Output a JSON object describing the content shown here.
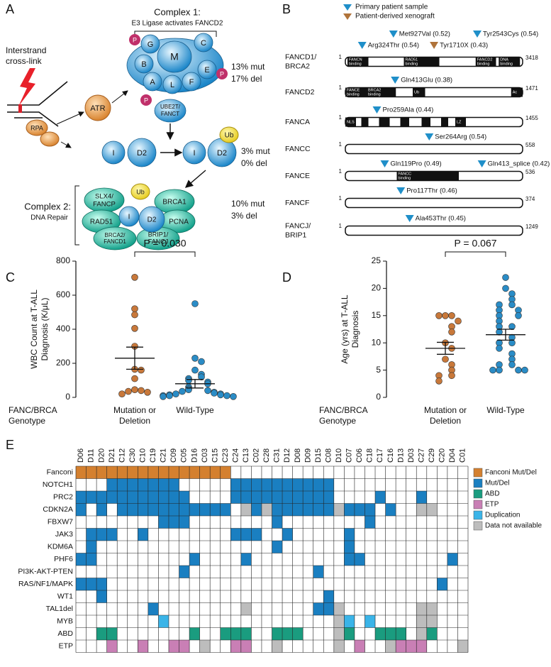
{
  "panel_labels": [
    "A",
    "B",
    "C",
    "D",
    "E"
  ],
  "panel_a": {
    "crosslink_label": [
      "Interstrand",
      "cross-link"
    ],
    "atr": "ATR",
    "rpa": "RPA",
    "complex1_title": "Complex 1:",
    "complex1_subtitle": "E3 Ligase activates FANCD2",
    "core_subunits": [
      "G",
      "M",
      "C",
      "B",
      "E",
      "A",
      "L",
      "F"
    ],
    "phospho": "P",
    "ube2t": [
      "UBE2T/",
      "FANCT"
    ],
    "complex1_stats": [
      "13% mut",
      "17% del"
    ],
    "id2": [
      "I",
      "D2"
    ],
    "ub": "Ub",
    "id2_stats": [
      "3% mut",
      "0% del"
    ],
    "complex2_title": "Complex 2:",
    "complex2_subtitle": "DNA Repair",
    "complex2_members": {
      "slx4": [
        "SLX4/",
        "FANCP"
      ],
      "brca1": "BRCA1",
      "rad51": "RAD51",
      "pcna": "PCNA",
      "brca2": [
        "BRCA2/",
        "FANCD1"
      ],
      "brip1": [
        "BRIP1/",
        "FANCJ"
      ]
    },
    "complex2_stats": [
      "10% mut",
      "3% del"
    ]
  },
  "panel_b": {
    "legend": [
      {
        "name": "Primary patient sample",
        "color": "#1f8fc9"
      },
      {
        "name": "Patient-derived xenograft",
        "color": "#b0733a"
      }
    ],
    "protein_start": 1,
    "genes": [
      {
        "name": [
          "FANCD1/",
          "BRCA2"
        ],
        "length": 3418,
        "domains": [
          [
            "FANCN",
            "binding"
          ],
          [
            "RAD51",
            "binding"
          ],
          [
            "FANCD2",
            "binding"
          ],
          [
            "DNA",
            "binding"
          ]
        ],
        "mutations": [
          {
            "label": "Met927Val (0.52)",
            "position": 927,
            "source": 0
          },
          {
            "label": "Tyr2543Cys (0.54)",
            "position": 2543,
            "source": 0
          },
          {
            "label": "Arg324Thr (0.54)",
            "position": 324,
            "source": 0
          },
          {
            "label": "Tyr1710X (0.43)",
            "position": 1710,
            "source": 1
          }
        ]
      },
      {
        "name": [
          "FANCD2"
        ],
        "length": 1471,
        "domains": [
          [
            "FANCE",
            "binding"
          ],
          [
            "BRCA2",
            "binding"
          ],
          [
            "Ub"
          ],
          [
            "Ac"
          ]
        ],
        "mutations": [
          {
            "label": "Gln413Glu (0.38)",
            "position": 413,
            "source": 0
          }
        ]
      },
      {
        "name": [
          "FANCA"
        ],
        "length": 1455,
        "domains": [
          [
            "NLS"
          ],
          [
            "LZ"
          ]
        ],
        "mutations": [
          {
            "label": "Pro259Ala (0.44)",
            "position": 259,
            "source": 0
          }
        ]
      },
      {
        "name": [
          "FANCC"
        ],
        "length": 558,
        "domains": [],
        "mutations": [
          {
            "label": "Ser264Arg (0.54)",
            "position": 264,
            "source": 0
          }
        ]
      },
      {
        "name": [
          "FANCE"
        ],
        "length": 536,
        "domains": [
          [
            "FANCC",
            "binding"
          ]
        ],
        "mutations": [
          {
            "label": "Gln119Pro (0.49)",
            "position": 119,
            "source": 0
          },
          {
            "label": "Gln413_splice (0.42)",
            "position": 413,
            "source": 0
          }
        ]
      },
      {
        "name": [
          "FANCF"
        ],
        "length": 374,
        "domains": [],
        "mutations": [
          {
            "label": "Pro117Thr (0.46)",
            "position": 117,
            "source": 0
          }
        ]
      },
      {
        "name": [
          "FANCJ/",
          "BRIP1"
        ],
        "length": 1249,
        "domains": [],
        "mutations": [
          {
            "label": "Ala453Thr (0.45)",
            "position": 453,
            "source": 0
          }
        ]
      }
    ]
  },
  "chart_data": [
    {
      "type": "dotplot",
      "y_label": [
        "WBC Count at T-ALL",
        "Diagnosis (K/μL)"
      ],
      "group_label": [
        "FANC/BRCA",
        "Genotype"
      ],
      "categories": [
        [
          "Mutation or",
          "Deletion"
        ],
        [
          "Wild-Type"
        ]
      ],
      "colors": [
        "#c8783a",
        "#2a8cc6"
      ],
      "values": [
        [
          705,
          520,
          485,
          405,
          300,
          165,
          160,
          110,
          45,
          40,
          35,
          30,
          20
        ],
        [
          550,
          230,
          210,
          160,
          135,
          120,
          110,
          100,
          90,
          80,
          60,
          50,
          45,
          40,
          35,
          30,
          25,
          20,
          20,
          15,
          15,
          10,
          10,
          10,
          5,
          5
        ]
      ],
      "means": [
        230,
        80
      ],
      "sems": [
        65,
        25
      ],
      "ylim": [
        0,
        800
      ],
      "yticks": [
        0,
        200,
        400,
        600,
        800
      ],
      "annotation": "P = 0.030"
    },
    {
      "type": "dotplot",
      "y_label": [
        "Age (yrs) at T-ALL",
        "Diagnosis"
      ],
      "group_label": [
        "FANC/BRCA",
        "Genotype"
      ],
      "categories": [
        [
          "Mutation or",
          "Deletion"
        ],
        [
          "Wild-Type"
        ]
      ],
      "colors": [
        "#c8783a",
        "#2a8cc6"
      ],
      "values": [
        [
          15,
          15,
          15,
          14,
          13,
          12,
          10,
          9,
          7,
          6,
          5,
          4,
          4,
          3
        ],
        [
          22,
          20,
          19,
          18,
          17,
          17,
          16,
          16,
          15,
          15,
          14,
          13,
          13,
          12,
          11,
          10,
          10,
          9,
          8,
          7,
          6,
          6,
          5,
          5,
          5,
          5
        ]
      ],
      "means": [
        9,
        11.5
      ],
      "sems": [
        1.1,
        1.0
      ],
      "ylim": [
        0,
        25
      ],
      "yticks": [
        0,
        5,
        10,
        15,
        20,
        25
      ],
      "annotation": "P = 0.067"
    },
    {
      "type": "heatmap",
      "columns": [
        "D06",
        "D11",
        "D20",
        "D21",
        "C12",
        "C30",
        "C10",
        "C19",
        "C21",
        "C09",
        "C05",
        "D16",
        "C03",
        "C15",
        "C23",
        "C24",
        "C13",
        "C02",
        "C28",
        "C31",
        "D12",
        "D08",
        "D09",
        "D15",
        "C08",
        "D10",
        "C07",
        "C06",
        "C18",
        "C17",
        "C16",
        "D13",
        "D03",
        "C27",
        "C29",
        "C20",
        "D04",
        "C01"
      ],
      "rows": [
        "Fanconi",
        "NOTCH1",
        "PRC2",
        "CDKN2A",
        "FBXW7",
        "JAK3",
        "KDM6A",
        "PHF6",
        "PI3K-AKT-PTEN",
        "RAS/NF1/MAPK",
        "WT1",
        "TAL1del",
        "MYB",
        "ABD",
        "ETP"
      ],
      "legend": [
        {
          "name": "Fanconi Mut/Del",
          "color": "#d4802f"
        },
        {
          "name": "Mut/Del",
          "color": "#1a7fc1"
        },
        {
          "name": "ABD",
          "color": "#1a9c7f"
        },
        {
          "name": "ETP",
          "color": "#c97fb5"
        },
        {
          "name": "Duplication",
          "color": "#3ab4e8"
        },
        {
          "name": "Data not available",
          "color": "#bdbdbd"
        }
      ],
      "cells": [
        [
          0,
          0,
          0,
          0,
          0,
          0,
          0,
          0,
          0,
          0,
          0,
          0,
          0,
          0,
          0,
          null,
          null,
          null,
          null,
          null,
          null,
          null,
          null,
          null,
          null,
          null,
          null,
          null,
          null,
          null,
          null,
          null,
          null,
          null,
          null,
          null,
          null,
          null
        ],
        [
          null,
          null,
          null,
          1,
          1,
          1,
          1,
          1,
          1,
          1,
          null,
          null,
          null,
          null,
          null,
          1,
          1,
          1,
          1,
          1,
          1,
          1,
          1,
          1,
          1,
          null,
          null,
          null,
          null,
          null,
          null,
          null,
          null,
          null,
          null,
          null,
          null,
          null
        ],
        [
          1,
          1,
          1,
          1,
          1,
          1,
          1,
          1,
          1,
          1,
          1,
          null,
          null,
          null,
          null,
          1,
          1,
          1,
          1,
          1,
          1,
          1,
          1,
          1,
          1,
          null,
          null,
          null,
          null,
          1,
          null,
          null,
          null,
          1,
          null,
          null,
          null,
          null
        ],
        [
          1,
          null,
          1,
          null,
          1,
          1,
          1,
          1,
          1,
          1,
          1,
          1,
          1,
          1,
          1,
          null,
          5,
          1,
          5,
          1,
          1,
          1,
          1,
          1,
          1,
          5,
          1,
          1,
          1,
          null,
          1,
          null,
          null,
          5,
          5,
          null,
          null,
          null
        ],
        [
          null,
          null,
          null,
          null,
          null,
          null,
          null,
          null,
          1,
          1,
          1,
          null,
          null,
          null,
          null,
          null,
          null,
          null,
          null,
          1,
          null,
          null,
          null,
          null,
          null,
          null,
          null,
          null,
          1,
          null,
          null,
          null,
          null,
          null,
          null,
          null,
          null,
          null
        ],
        [
          null,
          1,
          1,
          1,
          null,
          null,
          1,
          null,
          null,
          null,
          null,
          null,
          null,
          null,
          null,
          1,
          1,
          1,
          null,
          null,
          1,
          null,
          null,
          null,
          null,
          null,
          1,
          null,
          null,
          null,
          null,
          null,
          null,
          null,
          null,
          null,
          null,
          null
        ],
        [
          null,
          1,
          null,
          null,
          null,
          null,
          null,
          null,
          null,
          null,
          null,
          null,
          null,
          null,
          null,
          null,
          null,
          null,
          null,
          1,
          null,
          null,
          null,
          null,
          null,
          null,
          1,
          null,
          null,
          null,
          null,
          null,
          null,
          null,
          null,
          null,
          null,
          null
        ],
        [
          1,
          1,
          null,
          null,
          null,
          null,
          null,
          null,
          null,
          null,
          null,
          1,
          null,
          null,
          null,
          null,
          1,
          null,
          null,
          null,
          null,
          null,
          null,
          null,
          null,
          null,
          1,
          1,
          null,
          null,
          null,
          null,
          null,
          null,
          null,
          null,
          1,
          null
        ],
        [
          null,
          null,
          null,
          null,
          null,
          null,
          null,
          null,
          null,
          null,
          1,
          null,
          null,
          null,
          null,
          null,
          null,
          null,
          null,
          null,
          null,
          null,
          null,
          1,
          null,
          null,
          null,
          null,
          null,
          null,
          null,
          null,
          null,
          null,
          null,
          null,
          null,
          null
        ],
        [
          1,
          1,
          1,
          null,
          null,
          null,
          null,
          null,
          null,
          null,
          null,
          null,
          null,
          null,
          null,
          null,
          null,
          null,
          null,
          null,
          null,
          null,
          null,
          null,
          null,
          null,
          null,
          null,
          null,
          null,
          null,
          null,
          null,
          null,
          null,
          1,
          null,
          null
        ],
        [
          null,
          null,
          1,
          null,
          null,
          null,
          null,
          null,
          null,
          null,
          null,
          null,
          null,
          null,
          null,
          null,
          null,
          null,
          null,
          null,
          null,
          null,
          null,
          null,
          1,
          null,
          null,
          null,
          null,
          null,
          null,
          null,
          null,
          null,
          null,
          null,
          null,
          null
        ],
        [
          null,
          null,
          null,
          null,
          null,
          null,
          null,
          1,
          null,
          null,
          null,
          null,
          null,
          null,
          null,
          null,
          5,
          null,
          null,
          null,
          null,
          null,
          null,
          1,
          1,
          5,
          null,
          null,
          null,
          null,
          null,
          null,
          null,
          5,
          5,
          null,
          null,
          null
        ],
        [
          null,
          null,
          null,
          null,
          null,
          null,
          null,
          null,
          4,
          null,
          null,
          null,
          null,
          null,
          null,
          null,
          null,
          null,
          null,
          null,
          null,
          null,
          null,
          null,
          null,
          5,
          4,
          null,
          4,
          null,
          null,
          null,
          null,
          5,
          5,
          null,
          null,
          null
        ],
        [
          null,
          null,
          2,
          2,
          null,
          null,
          null,
          null,
          null,
          null,
          null,
          2,
          null,
          null,
          2,
          2,
          2,
          null,
          null,
          2,
          2,
          2,
          null,
          null,
          null,
          5,
          2,
          null,
          null,
          2,
          2,
          2,
          null,
          5,
          2,
          null,
          null,
          null
        ],
        [
          null,
          null,
          null,
          3,
          null,
          null,
          3,
          null,
          null,
          3,
          3,
          null,
          5,
          null,
          null,
          3,
          3,
          null,
          null,
          5,
          null,
          null,
          null,
          null,
          null,
          5,
          null,
          3,
          null,
          null,
          5,
          3,
          3,
          3,
          null,
          null,
          null,
          5
        ]
      ]
    }
  ]
}
